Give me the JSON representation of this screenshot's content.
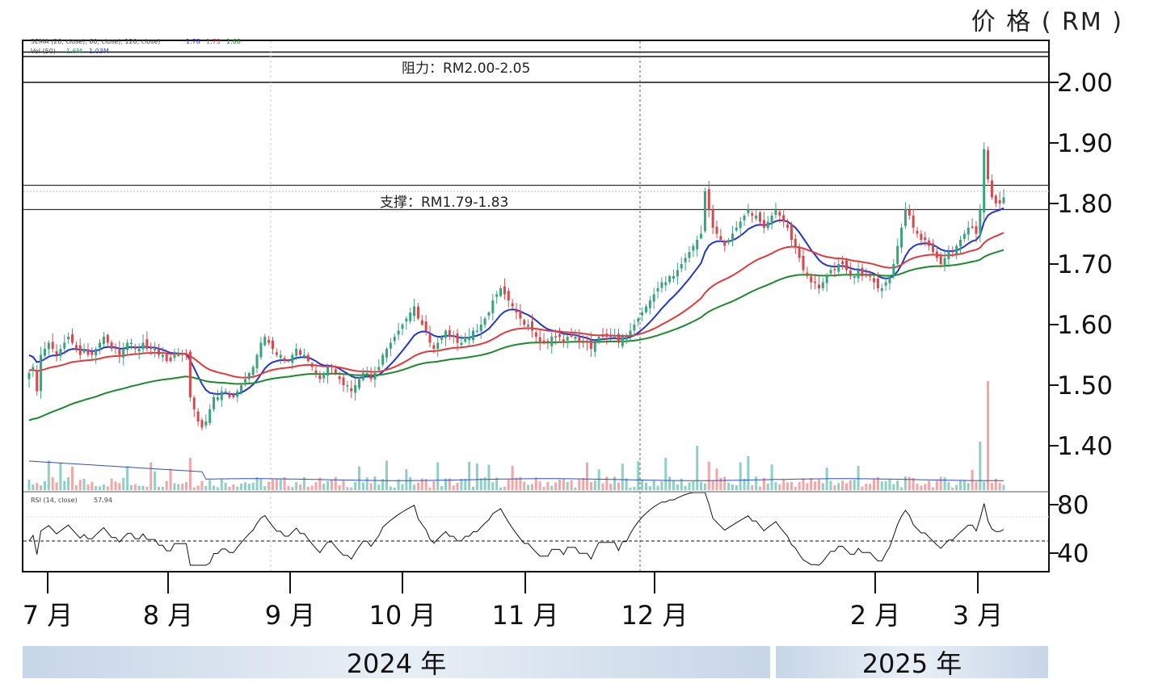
{
  "y_axis_title": "价 格 ( RM )",
  "years": [
    "2024 年",
    "2025 年"
  ],
  "annotations": {
    "resistance": "阻力：RM2.00-2.05",
    "support": "支撑：RM1.79-1.83"
  },
  "indicator_labels": {
    "ema": "3EMA (20, close), 60, close), 120, close)",
    "ema_values": [
      "1.78",
      "1.73",
      "1.68"
    ],
    "vol": "Vol (50)",
    "vol_values": [
      "1.6M",
      "1.03M"
    ],
    "rsi": "RSI (14, close)",
    "rsi_value": "57.94"
  },
  "colors": {
    "ema20": "#1f36d4",
    "ema60": "#e23a3a",
    "ema120": "#1c8a2c",
    "up": "#3aa37e",
    "down": "#d8494d",
    "vol_up": "#8fd0c4",
    "vol_down": "#f2a6a6",
    "vol_ma": "#2b4fd0"
  },
  "chart_data": {
    "type": "candlestick",
    "x_tick_labels": [
      "7 月",
      "8 月",
      "9 月",
      "10 月",
      "11 月",
      "12 月",
      "2 月",
      "3 月"
    ],
    "y_ticks": [
      "2.00",
      "1.90",
      "1.80",
      "1.70",
      "1.60",
      "1.50",
      "1.40"
    ],
    "y_range": [
      1.33,
      2.07
    ],
    "rsi_ticks": [
      "80",
      "40"
    ],
    "rsi_range": [
      20,
      100
    ],
    "resistance_zone": [
      2.0,
      2.05
    ],
    "support_zone": [
      1.79,
      1.83
    ],
    "close_series": [
      1.52,
      1.53,
      1.49,
      1.55,
      1.56,
      1.57,
      1.56,
      1.55,
      1.56,
      1.57,
      1.58,
      1.57,
      1.56,
      1.55,
      1.56,
      1.55,
      1.55,
      1.56,
      1.57,
      1.58,
      1.57,
      1.56,
      1.56,
      1.55,
      1.56,
      1.57,
      1.57,
      1.56,
      1.56,
      1.57,
      1.56,
      1.56,
      1.56,
      1.55,
      1.55,
      1.54,
      1.54,
      1.55,
      1.55,
      1.55,
      1.55,
      1.48,
      1.46,
      1.44,
      1.43,
      1.44,
      1.46,
      1.48,
      1.48,
      1.49,
      1.49,
      1.48,
      1.48,
      1.49,
      1.5,
      1.51,
      1.52,
      1.53,
      1.55,
      1.57,
      1.58,
      1.57,
      1.56,
      1.55,
      1.55,
      1.54,
      1.54,
      1.55,
      1.56,
      1.55,
      1.55,
      1.54,
      1.53,
      1.52,
      1.51,
      1.52,
      1.53,
      1.53,
      1.52,
      1.51,
      1.5,
      1.5,
      1.49,
      1.5,
      1.51,
      1.52,
      1.52,
      1.51,
      1.52,
      1.53,
      1.55,
      1.56,
      1.57,
      1.58,
      1.59,
      1.6,
      1.61,
      1.62,
      1.63,
      1.61,
      1.6,
      1.59,
      1.57,
      1.56,
      1.57,
      1.58,
      1.59,
      1.58,
      1.58,
      1.57,
      1.57,
      1.58,
      1.58,
      1.59,
      1.59,
      1.6,
      1.61,
      1.62,
      1.64,
      1.65,
      1.66,
      1.65,
      1.64,
      1.63,
      1.62,
      1.61,
      1.6,
      1.6,
      1.59,
      1.58,
      1.57,
      1.57,
      1.57,
      1.58,
      1.58,
      1.58,
      1.57,
      1.58,
      1.58,
      1.58,
      1.57,
      1.57,
      1.57,
      1.56,
      1.57,
      1.58,
      1.58,
      1.58,
      1.58,
      1.58,
      1.57,
      1.58,
      1.58,
      1.59,
      1.6,
      1.61,
      1.62,
      1.63,
      1.64,
      1.65,
      1.66,
      1.67,
      1.67,
      1.68,
      1.68,
      1.69,
      1.7,
      1.71,
      1.72,
      1.73,
      1.74,
      1.75,
      1.82,
      1.79,
      1.76,
      1.75,
      1.74,
      1.73,
      1.74,
      1.75,
      1.76,
      1.77,
      1.78,
      1.79,
      1.78,
      1.78,
      1.77,
      1.76,
      1.77,
      1.78,
      1.79,
      1.78,
      1.77,
      1.76,
      1.74,
      1.73,
      1.71,
      1.69,
      1.68,
      1.67,
      1.67,
      1.66,
      1.67,
      1.68,
      1.69,
      1.69,
      1.7,
      1.7,
      1.69,
      1.68,
      1.68,
      1.69,
      1.68,
      1.68,
      1.68,
      1.67,
      1.66,
      1.66,
      1.67,
      1.68,
      1.7,
      1.73,
      1.76,
      1.79,
      1.78,
      1.76,
      1.75,
      1.74,
      1.74,
      1.73,
      1.72,
      1.71,
      1.7,
      1.71,
      1.72,
      1.72,
      1.73,
      1.74,
      1.75,
      1.76,
      1.76,
      1.75,
      1.79,
      1.89,
      1.84,
      1.81,
      1.8,
      1.8,
      1.81
    ]
  }
}
